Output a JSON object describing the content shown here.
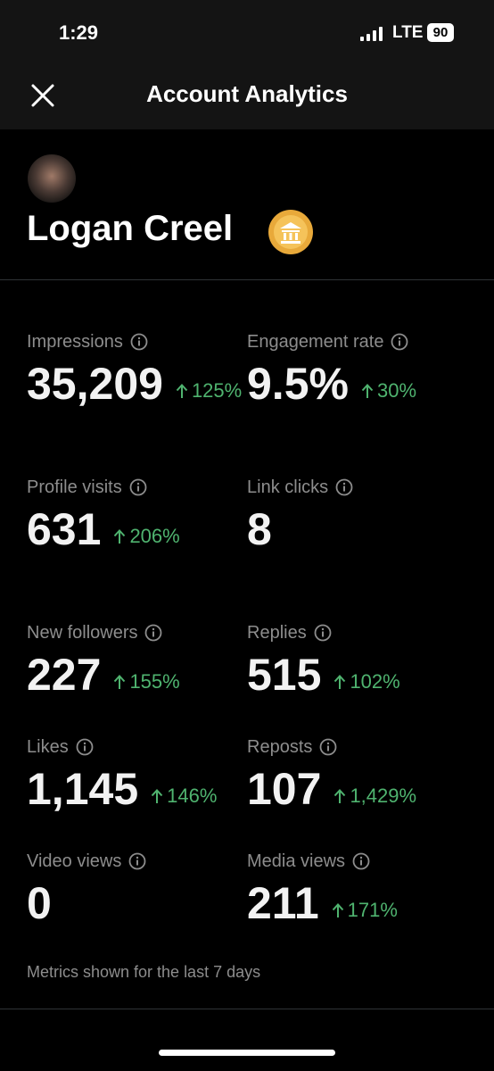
{
  "status_bar": {
    "time": "1:29",
    "network": "LTE",
    "battery": "90"
  },
  "header": {
    "title": "Account Analytics"
  },
  "profile": {
    "name": "Logan Creel"
  },
  "metrics": [
    {
      "label": "Impressions",
      "value": "35,209",
      "change": "125%"
    },
    {
      "label": "Engagement rate",
      "value": "9.5%",
      "change": "30%"
    },
    {
      "label": "Profile visits",
      "value": "631",
      "change": "206%"
    },
    {
      "label": "Link clicks",
      "value": "8"
    },
    {
      "label": "New followers",
      "value": "227",
      "change": "155%"
    },
    {
      "label": "Replies",
      "value": "515",
      "change": "102%"
    },
    {
      "label": "Likes",
      "value": "1,145",
      "change": "146%"
    },
    {
      "label": "Reposts",
      "value": "107",
      "change": "1,429%"
    },
    {
      "label": "Video views",
      "value": "0"
    },
    {
      "label": "Media views",
      "value": "211",
      "change": "171%"
    }
  ],
  "footer": {
    "note": "Metrics shown for the last 7 days"
  }
}
